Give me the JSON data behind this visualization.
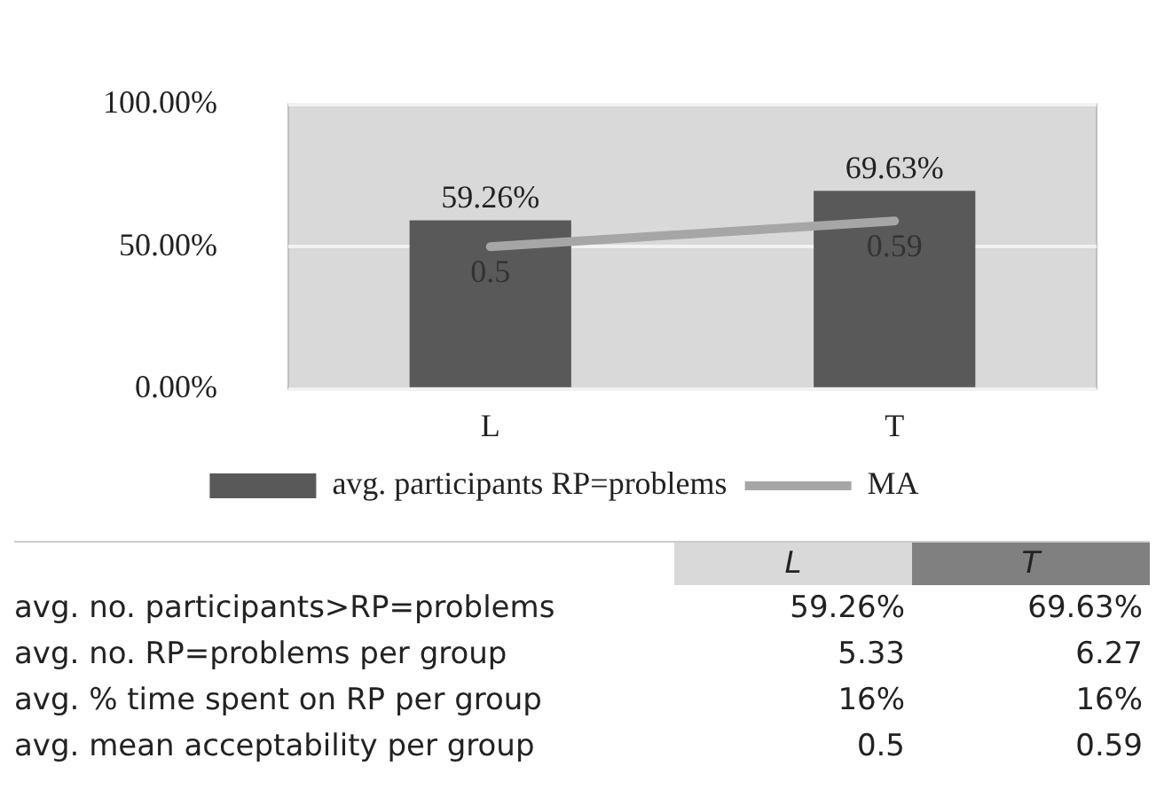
{
  "chart_data": [
    {
      "type": "bar",
      "categories": [
        "L",
        "T"
      ],
      "series": [
        {
          "name": "avg. participants RP=problems",
          "type": "bar",
          "color": "#595959",
          "values": [
            59.26,
            69.63
          ],
          "value_labels": [
            "59.26%",
            "69.63%"
          ]
        },
        {
          "name": "MA",
          "type": "line",
          "axis": "y2",
          "color": "#a6a6a6",
          "values": [
            0.5,
            0.59
          ],
          "value_labels": [
            "0.5",
            "0.59"
          ]
        }
      ],
      "ylim": [
        0,
        100
      ],
      "yticks": [
        {
          "value": 0,
          "label": "0.00%"
        },
        {
          "value": 50,
          "label": "50.00%"
        },
        {
          "value": 100,
          "label": "100.00%"
        }
      ],
      "y2lim": [
        0,
        1
      ],
      "grid": "y",
      "legend": "bottom",
      "marker": "none"
    },
    {
      "type": "other",
      "categories": [
        "L",
        "T"
      ],
      "y_categories": [
        "avg. no. participants>RP=problems",
        "avg. no. RP=problems per group",
        "avg. % time spent on RP per group",
        "avg. mean acceptability per group"
      ],
      "cell_labels": [
        [
          "59.26%",
          "69.63%"
        ],
        [
          "5.33",
          "6.27"
        ],
        [
          "16%",
          "16%"
        ],
        [
          "0.5",
          "0.59"
        ]
      ]
    }
  ]
}
